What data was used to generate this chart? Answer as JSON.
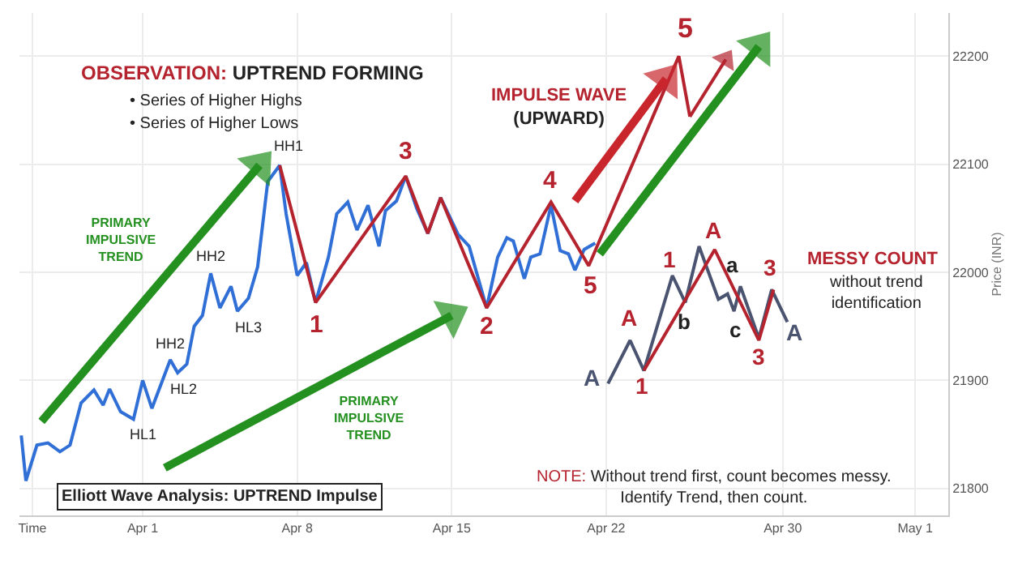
{
  "chart_data": {
    "type": "line",
    "series": [
      {
        "color": "#2f6fd6",
        "x": [
          "--03-26T12:00",
          "--03-26T17:00",
          "--03-27T05:00",
          "--03-27T17:00",
          "--03-28T06:00",
          "--03-28T17:00",
          "--03-29T05:00",
          "--03-29T19:00",
          "--03-30T05:00",
          "--03-30T12:00",
          "--03-31T00:00",
          "--03-31T14:00",
          "--04-01T00:00",
          "--04-01T10:00",
          "--04-02T06:00",
          "--04-02T14:00",
          "--04-03T00:00",
          "--04-03T08:00",
          "--04-03T17:00",
          "--04-04T02:00",
          "--04-04T12:00",
          "--04-05T00:00",
          "--04-05T07:00",
          "--04-05T19:00",
          "--04-06T05:00",
          "--04-06T16:00",
          "--04-07T05:00",
          "--04-07T12:00",
          "--04-08T00:00",
          "--04-08T10:00",
          "--04-08T20:00",
          "--04-09T10:00",
          "--04-09T19:00",
          "--04-10T07:00",
          "--04-10T17:00",
          "--04-11T05:00",
          "--04-11T17:00",
          "--04-12T00:00",
          "--04-12T12:00",
          "--04-12T22:00",
          "--04-13T10:00",
          "--04-13T22:00",
          "--04-14T12:00",
          "--04-15T07:00",
          "--04-15T19:00",
          "--04-16T14:00",
          "--04-17T02:00",
          "--04-17T12:00",
          "--04-17T19:00",
          "--04-18T07:00",
          "--04-18T14:00",
          "--04-19T00:00",
          "--04-19T12:00",
          "--04-19T22:00",
          "--04-20T07:00",
          "--04-20T14:00",
          "--04-21T00:00",
          "--04-21T12:00"
        ],
        "values": [
          21849,
          21807,
          21840,
          21842,
          21834,
          21840,
          21879,
          21891,
          21877,
          21892,
          21871,
          21864,
          21900,
          21874,
          21919,
          21907,
          21915,
          21950,
          21960,
          21999,
          21967,
          21987,
          21964,
          21976,
          22005,
          22084,
          22099,
          22054,
          21997,
          22009,
          21972,
          22014,
          22054,
          22065,
          22039,
          22062,
          22024,
          22057,
          22066,
          22089,
          22059,
          22036,
          22069,
          22035,
          22024,
          21967,
          22014,
          22032,
          22029,
          21994,
          22014,
          22017,
          22062,
          22020,
          22017,
          22002,
          22021,
          22027
        ]
      },
      {
        "color": "#b5232f",
        "x": [
          "--04-07T05:00",
          "--04-08T20:00",
          "--04-12T22:00",
          "--04-13T22:00",
          "--04-14T12:00",
          "--04-16T14:00",
          "--04-19T12:00",
          "--04-21T05:00",
          "--04-25T07:00",
          "--04-25T19:00"
        ],
        "values": [
          22099,
          21972,
          22089,
          22036,
          22069,
          21967,
          22065,
          22006,
          22200,
          22144
        ]
      },
      {
        "color": "#b5232f",
        "marker": "triangle",
        "x": [
          "--04-25T19:00",
          "--04-27T10:00"
        ],
        "values": [
          22144,
          22197
        ]
      },
      {
        "color": "#c8262c",
        "marker": "triangle",
        "x": [
          "--04-20T14:00",
          "--04-24T17:00"
        ],
        "values": [
          22066,
          22179
        ]
      },
      {
        "color": "#23901f",
        "marker": "triangle",
        "x": [
          "--03-27T10:00",
          "--04-06T07:00"
        ],
        "values": [
          21862,
          22099
        ]
      },
      {
        "color": "#23901f",
        "marker": "triangle",
        "x": [
          "--04-02T00:00",
          "--04-15T00:00"
        ],
        "values": [
          21819,
          21960
        ]
      },
      {
        "color": "#23901f",
        "marker": "triangle",
        "x": [
          "--04-21T17:00",
          "--04-28T22:00"
        ],
        "values": [
          22017,
          22209
        ]
      },
      {
        "color": "#4a5470",
        "x": [
          "--04-22T02:00",
          "--04-23T02:00",
          "--04-23T17:00",
          "--04-25T00:00",
          "--04-25T14:00",
          "--04-26T05:00",
          "--04-27T02:00",
          "--04-27T12:00",
          "--04-27T19:00",
          "--04-28T02:00",
          "--04-28T22:00",
          "--04-29T12:00",
          "--04-30T05:00"
        ],
        "values": [
          21897,
          21937,
          21909,
          21997,
          21972,
          22024,
          21975,
          21980,
          21964,
          21987,
          21939,
          21984,
          21954
        ]
      },
      {
        "color": "#b5232f",
        "x": [
          "--04-23T17:00",
          "--04-26T22:00",
          "--04-28T22:00",
          "--04-29T14:00"
        ],
        "values": [
          21909,
          22021,
          21937,
          21984
        ]
      }
    ],
    "xlim": [
      "--03-26T10:00",
      "--05-07T12:00"
    ],
    "xticks": [
      {
        "value": "--03-27",
        "label": "Time"
      },
      {
        "value": "--04-01",
        "label": "Apr 1"
      },
      {
        "value": "--04-08",
        "label": "Apr 8"
      },
      {
        "value": "--04-15",
        "label": "Apr 15"
      },
      {
        "value": "--04-22",
        "label": "Apr 22"
      },
      {
        "value": "--04-30",
        "label": "Apr 30"
      },
      {
        "value": "--05-06",
        "label": "May 1"
      }
    ],
    "ylim": [
      21775,
      22240
    ],
    "yticks": [
      21800,
      21900,
      22000,
      22100,
      22200
    ],
    "ylabel": "Price (INR)",
    "grid": true,
    "annotations": [
      "HH1",
      "HH2",
      "HH2",
      "HL1",
      "HL2",
      "HL3",
      "1",
      "3",
      "2",
      "4",
      "5",
      "5",
      "A",
      "A",
      "1",
      "1",
      "A",
      "b",
      "a",
      "c",
      "3",
      "3",
      "A",
      "OBSERVATION: UPTREND FORMING",
      "• Series of Higher Highs",
      "• Series of Higher Lows",
      "IMPULSE WAVE\n(UPWARD)",
      "PRIMARY\nIMPULSIVE\nTREND",
      "PRIMARY\nIMPULSIVE\nTREND",
      "MESSY COUNT",
      "without trend\nidentification",
      "NOTE: Without trend first, count becomes messy.\nIdentify Trend, then count.",
      "Elliott Wave Analysis: UPTREND Impulse"
    ]
  }
}
